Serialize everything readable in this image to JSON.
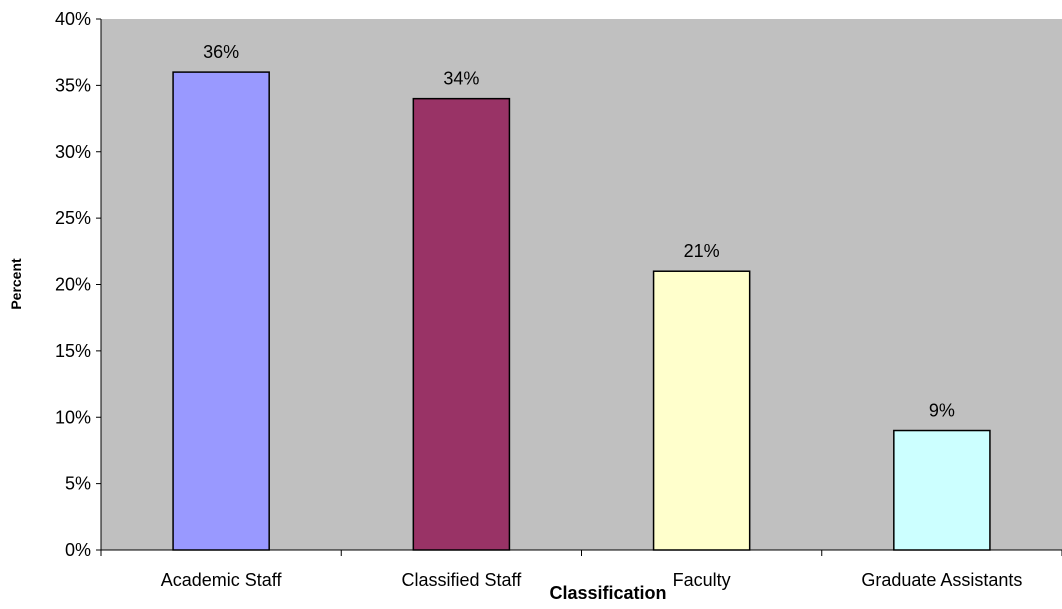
{
  "chart_data": {
    "type": "bar",
    "title": "",
    "xlabel": "Classification",
    "ylabel": "Percent",
    "ylim": [
      0,
      40
    ],
    "ytick_step": 5,
    "ytick_format": "percent",
    "categories": [
      "Academic Staff",
      "Classified Staff",
      "Faculty",
      "Graduate Assistants"
    ],
    "values": [
      36,
      34,
      21,
      9
    ],
    "data_labels": [
      "36%",
      "34%",
      "21%",
      "9%"
    ],
    "bar_colors": [
      "#9999ff",
      "#993366",
      "#ffffcc",
      "#ccffff"
    ],
    "plot_background": "#c0c0c0",
    "grid": false,
    "legend": "none"
  }
}
